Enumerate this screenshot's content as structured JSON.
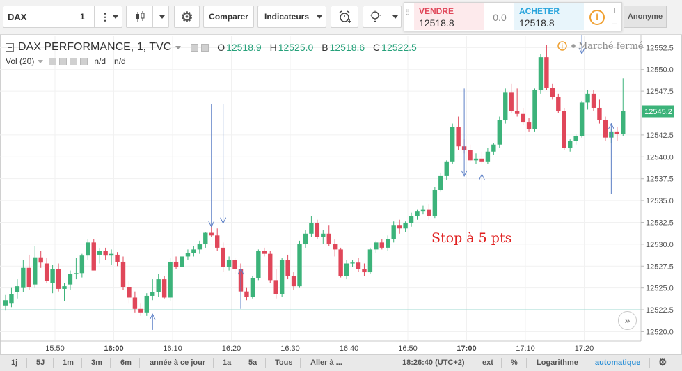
{
  "toolbar": {
    "symbol": "DAX",
    "interval": "1",
    "compare_label": "Comparer",
    "indicators_label": "Indicateurs",
    "user_label": "Anonyme"
  },
  "trade": {
    "sell_label": "VENDRE",
    "sell_value": "12518.8",
    "spread": "0.0",
    "buy_label": "ACHETER",
    "buy_value": "12518.8",
    "info_glyph": "i",
    "plus": "+",
    "minus": "−"
  },
  "legend": {
    "title": "DAX PERFORMANCE, 1, TVC",
    "o_label": "O",
    "o_value": "12518.9",
    "h_label": "H",
    "h_value": "12525.0",
    "b_label": "B",
    "b_value": "12518.6",
    "c_label": "C",
    "c_value": "12522.5",
    "vol_label": "Vol (20)",
    "vol_val1": "n/d",
    "vol_val2": "n/d"
  },
  "market_status": "Marché fermé",
  "annotation": "Stop à 5 pts",
  "bottom_bar": {
    "ranges": [
      "1j",
      "5J",
      "1m",
      "3m",
      "6m",
      "année à ce jour",
      "1a",
      "5a",
      "Tous",
      "Aller à ..."
    ],
    "time": "18:26:40 (UTC+2)",
    "ext": "ext",
    "percent": "%",
    "log": "Logarithme",
    "auto": "automatique"
  },
  "colors": {
    "up": "#3cb37a",
    "down": "#e0475a",
    "accent": "#2196f3",
    "price_tag": "#3cb37a",
    "hline": "#9fd8d2"
  },
  "chart_data": {
    "type": "candlestick",
    "y_ticks": [
      "12520.0",
      "12522.5",
      "12525.0",
      "12527.5",
      "12530.0",
      "12532.5",
      "12535.0",
      "12537.5",
      "12540.0",
      "12542.5",
      "12545.0",
      "12547.5",
      "12550.0",
      "12552.5"
    ],
    "ylim": [
      12519,
      12553.8
    ],
    "x_ticks": [
      {
        "label": "15:50",
        "bold": false
      },
      {
        "label": "16:00",
        "bold": true
      },
      {
        "label": "16:10",
        "bold": false
      },
      {
        "label": "16:20",
        "bold": false
      },
      {
        "label": "16:30",
        "bold": false
      },
      {
        "label": "16:40",
        "bold": false
      },
      {
        "label": "16:50",
        "bold": false
      },
      {
        "label": "17:00",
        "bold": true
      },
      {
        "label": "17:10",
        "bold": false
      },
      {
        "label": "17:20",
        "bold": false
      }
    ],
    "last_price": "12545.2",
    "horizontal_line": 12522.5,
    "candles": [
      {
        "o": 12523.0,
        "h": 12524.2,
        "l": 12522.4,
        "c": 12523.6
      },
      {
        "o": 12523.2,
        "h": 12525.0,
        "l": 12522.8,
        "c": 12524.3
      },
      {
        "o": 12524.5,
        "h": 12526.0,
        "l": 12523.8,
        "c": 12525.2
      },
      {
        "o": 12525.0,
        "h": 12528.2,
        "l": 12524.5,
        "c": 12527.3
      },
      {
        "o": 12527.3,
        "h": 12528.8,
        "l": 12524.8,
        "c": 12525.1
      },
      {
        "o": 12525.4,
        "h": 12529.8,
        "l": 12525.0,
        "c": 12528.5
      },
      {
        "o": 12528.5,
        "h": 12529.2,
        "l": 12527.3,
        "c": 12527.9
      },
      {
        "o": 12527.8,
        "h": 12528.4,
        "l": 12525.6,
        "c": 12525.8
      },
      {
        "o": 12525.6,
        "h": 12527.6,
        "l": 12524.4,
        "c": 12527.2
      },
      {
        "o": 12527.2,
        "h": 12527.8,
        "l": 12524.6,
        "c": 12524.9
      },
      {
        "o": 12524.9,
        "h": 12525.6,
        "l": 12523.5,
        "c": 12525.2
      },
      {
        "o": 12525.4,
        "h": 12527.0,
        "l": 12524.8,
        "c": 12526.6
      },
      {
        "o": 12526.6,
        "h": 12528.4,
        "l": 12526.0,
        "c": 12526.7
      },
      {
        "o": 12526.7,
        "h": 12528.9,
        "l": 12526.2,
        "c": 12528.7
      },
      {
        "o": 12528.7,
        "h": 12530.6,
        "l": 12528.2,
        "c": 12530.2
      },
      {
        "o": 12530.2,
        "h": 12530.6,
        "l": 12527.0,
        "c": 12527.0
      },
      {
        "o": 12528.8,
        "h": 12529.5,
        "l": 12527.8,
        "c": 12529.2
      },
      {
        "o": 12529.2,
        "h": 12529.6,
        "l": 12528.2,
        "c": 12528.7
      },
      {
        "o": 12528.7,
        "h": 12529.4,
        "l": 12527.6,
        "c": 12528.9
      },
      {
        "o": 12528.8,
        "h": 12529.1,
        "l": 12527.5,
        "c": 12528.0
      },
      {
        "o": 12528.0,
        "h": 12528.6,
        "l": 12524.8,
        "c": 12525.1
      },
      {
        "o": 12525.1,
        "h": 12525.8,
        "l": 12523.2,
        "c": 12523.9
      },
      {
        "o": 12523.9,
        "h": 12524.6,
        "l": 12522.2,
        "c": 12522.6
      },
      {
        "o": 12522.6,
        "h": 12523.2,
        "l": 12521.8,
        "c": 12522.2
      },
      {
        "o": 12522.2,
        "h": 12524.4,
        "l": 12521.8,
        "c": 12524.1
      },
      {
        "o": 12524.1,
        "h": 12526.0,
        "l": 12523.6,
        "c": 12524.5
      },
      {
        "o": 12524.5,
        "h": 12526.6,
        "l": 12524.0,
        "c": 12526.0
      },
      {
        "o": 12526.0,
        "h": 12526.4,
        "l": 12523.8,
        "c": 12523.9
      },
      {
        "o": 12523.9,
        "h": 12528.4,
        "l": 12523.5,
        "c": 12528.0
      },
      {
        "o": 12528.0,
        "h": 12528.6,
        "l": 12527.2,
        "c": 12527.4
      },
      {
        "o": 12527.4,
        "h": 12528.8,
        "l": 12527.0,
        "c": 12528.6
      },
      {
        "o": 12528.6,
        "h": 12529.4,
        "l": 12528.2,
        "c": 12529.0
      },
      {
        "o": 12529.0,
        "h": 12529.8,
        "l": 12528.6,
        "c": 12529.4
      },
      {
        "o": 12529.4,
        "h": 12530.4,
        "l": 12528.9,
        "c": 12530.0
      },
      {
        "o": 12530.0,
        "h": 12531.4,
        "l": 12529.6,
        "c": 12531.3
      },
      {
        "o": 12531.3,
        "h": 12532.2,
        "l": 12530.8,
        "c": 12531.0
      },
      {
        "o": 12531.0,
        "h": 12531.8,
        "l": 12529.2,
        "c": 12529.6
      },
      {
        "o": 12529.6,
        "h": 12530.2,
        "l": 12526.8,
        "c": 12527.4
      },
      {
        "o": 12527.4,
        "h": 12528.6,
        "l": 12527.0,
        "c": 12528.2
      },
      {
        "o": 12528.2,
        "h": 12528.4,
        "l": 12526.6,
        "c": 12527.2
      },
      {
        "o": 12527.2,
        "h": 12527.8,
        "l": 12524.2,
        "c": 12524.6
      },
      {
        "o": 12524.6,
        "h": 12525.0,
        "l": 12523.6,
        "c": 12524.0
      },
      {
        "o": 12524.0,
        "h": 12526.4,
        "l": 12523.8,
        "c": 12526.1
      },
      {
        "o": 12526.1,
        "h": 12529.4,
        "l": 12525.9,
        "c": 12529.2
      },
      {
        "o": 12529.2,
        "h": 12529.6,
        "l": 12528.6,
        "c": 12528.9
      },
      {
        "o": 12528.9,
        "h": 12529.2,
        "l": 12525.6,
        "c": 12525.9
      },
      {
        "o": 12525.9,
        "h": 12527.2,
        "l": 12523.8,
        "c": 12524.3
      },
      {
        "o": 12524.3,
        "h": 12528.4,
        "l": 12524.0,
        "c": 12528.2
      },
      {
        "o": 12528.2,
        "h": 12528.8,
        "l": 12526.0,
        "c": 12526.4
      },
      {
        "o": 12526.4,
        "h": 12526.8,
        "l": 12524.8,
        "c": 12525.2
      },
      {
        "o": 12525.2,
        "h": 12530.4,
        "l": 12525.0,
        "c": 12530.0
      },
      {
        "o": 12530.0,
        "h": 12531.6,
        "l": 12529.6,
        "c": 12531.2
      },
      {
        "o": 12531.2,
        "h": 12533.2,
        "l": 12530.8,
        "c": 12532.4
      },
      {
        "o": 12532.4,
        "h": 12532.8,
        "l": 12530.6,
        "c": 12530.8
      },
      {
        "o": 12530.8,
        "h": 12531.6,
        "l": 12530.0,
        "c": 12531.2
      },
      {
        "o": 12531.2,
        "h": 12532.2,
        "l": 12529.8,
        "c": 12530.0
      },
      {
        "o": 12530.0,
        "h": 12530.6,
        "l": 12528.6,
        "c": 12529.4
      },
      {
        "o": 12529.4,
        "h": 12529.6,
        "l": 12526.2,
        "c": 12526.4
      },
      {
        "o": 12526.4,
        "h": 12528.2,
        "l": 12526.0,
        "c": 12527.8
      },
      {
        "o": 12527.8,
        "h": 12528.2,
        "l": 12527.4,
        "c": 12527.9
      },
      {
        "o": 12527.9,
        "h": 12528.4,
        "l": 12526.8,
        "c": 12527.2
      },
      {
        "o": 12527.2,
        "h": 12527.8,
        "l": 12526.4,
        "c": 12526.8
      },
      {
        "o": 12526.8,
        "h": 12529.6,
        "l": 12526.6,
        "c": 12529.4
      },
      {
        "o": 12529.4,
        "h": 12530.4,
        "l": 12529.0,
        "c": 12530.2
      },
      {
        "o": 12530.2,
        "h": 12530.6,
        "l": 12529.4,
        "c": 12529.6
      },
      {
        "o": 12529.6,
        "h": 12531.0,
        "l": 12529.2,
        "c": 12530.6
      },
      {
        "o": 12530.6,
        "h": 12532.6,
        "l": 12530.2,
        "c": 12532.2
      },
      {
        "o": 12532.2,
        "h": 12532.8,
        "l": 12531.2,
        "c": 12531.8
      },
      {
        "o": 12531.8,
        "h": 12532.6,
        "l": 12531.4,
        "c": 12532.4
      },
      {
        "o": 12532.4,
        "h": 12533.6,
        "l": 12532.0,
        "c": 12533.2
      },
      {
        "o": 12533.2,
        "h": 12534.0,
        "l": 12532.8,
        "c": 12533.8
      },
      {
        "o": 12533.8,
        "h": 12534.4,
        "l": 12533.4,
        "c": 12534.0
      },
      {
        "o": 12534.0,
        "h": 12534.6,
        "l": 12532.8,
        "c": 12533.2
      },
      {
        "o": 12533.2,
        "h": 12536.6,
        "l": 12533.0,
        "c": 12536.2
      },
      {
        "o": 12536.2,
        "h": 12538.2,
        "l": 12536.0,
        "c": 12537.8
      },
      {
        "o": 12537.8,
        "h": 12539.6,
        "l": 12537.4,
        "c": 12539.4
      },
      {
        "o": 12539.4,
        "h": 12543.8,
        "l": 12539.2,
        "c": 12543.4
      },
      {
        "o": 12543.4,
        "h": 12544.6,
        "l": 12540.8,
        "c": 12541.2
      },
      {
        "o": 12541.2,
        "h": 12542.0,
        "l": 12540.4,
        "c": 12540.8
      },
      {
        "o": 12540.8,
        "h": 12541.4,
        "l": 12539.4,
        "c": 12539.6
      },
      {
        "o": 12539.6,
        "h": 12540.4,
        "l": 12539.2,
        "c": 12539.8
      },
      {
        "o": 12539.8,
        "h": 12540.6,
        "l": 12539.2,
        "c": 12539.4
      },
      {
        "o": 12539.4,
        "h": 12541.0,
        "l": 12539.2,
        "c": 12540.6
      },
      {
        "o": 12540.6,
        "h": 12541.6,
        "l": 12540.2,
        "c": 12541.4
      },
      {
        "o": 12541.4,
        "h": 12544.6,
        "l": 12541.0,
        "c": 12544.2
      },
      {
        "o": 12544.2,
        "h": 12547.8,
        "l": 12543.8,
        "c": 12547.4
      },
      {
        "o": 12547.4,
        "h": 12548.4,
        "l": 12545.0,
        "c": 12545.2
      },
      {
        "o": 12545.2,
        "h": 12547.8,
        "l": 12544.6,
        "c": 12544.9
      },
      {
        "o": 12544.9,
        "h": 12545.6,
        "l": 12543.6,
        "c": 12544.0
      },
      {
        "o": 12544.0,
        "h": 12544.4,
        "l": 12542.9,
        "c": 12543.2
      },
      {
        "o": 12543.2,
        "h": 12547.8,
        "l": 12542.9,
        "c": 12547.6
      },
      {
        "o": 12547.6,
        "h": 12551.8,
        "l": 12547.2,
        "c": 12551.4
      },
      {
        "o": 12551.4,
        "h": 12552.8,
        "l": 12547.6,
        "c": 12547.9
      },
      {
        "o": 12547.9,
        "h": 12548.4,
        "l": 12546.6,
        "c": 12546.8
      },
      {
        "o": 12546.8,
        "h": 12547.2,
        "l": 12545.0,
        "c": 12545.2
      },
      {
        "o": 12545.2,
        "h": 12545.6,
        "l": 12540.8,
        "c": 12541.0
      },
      {
        "o": 12541.0,
        "h": 12542.0,
        "l": 12540.6,
        "c": 12541.8
      },
      {
        "o": 12541.8,
        "h": 12542.6,
        "l": 12541.4,
        "c": 12542.4
      },
      {
        "o": 12542.4,
        "h": 12546.4,
        "l": 12542.2,
        "c": 12546.2
      },
      {
        "o": 12546.2,
        "h": 12547.6,
        "l": 12545.4,
        "c": 12547.2
      },
      {
        "o": 12547.2,
        "h": 12547.6,
        "l": 12545.2,
        "c": 12545.6
      },
      {
        "o": 12545.6,
        "h": 12546.6,
        "l": 12543.8,
        "c": 12544.2
      },
      {
        "o": 12544.2,
        "h": 12544.6,
        "l": 12541.8,
        "c": 12542.2
      },
      {
        "o": 12542.2,
        "h": 12543.2,
        "l": 12541.6,
        "c": 12542.9
      },
      {
        "o": 12542.9,
        "h": 12543.4,
        "l": 12541.8,
        "c": 12542.6
      },
      {
        "o": 12542.6,
        "h": 12549.0,
        "l": 12542.4,
        "c": 12545.2
      }
    ],
    "arrows": [
      {
        "kind": "up",
        "candle": 25,
        "y_tip": 12522.0,
        "y_tail": 12520.2
      },
      {
        "kind": "down",
        "candle": 35,
        "y_tip": 12532.0,
        "y_tail": 12546.0
      },
      {
        "kind": "down",
        "candle": 37,
        "y_tip": 12532.4,
        "y_tail": 12546.0
      },
      {
        "kind": "up",
        "candle": 40,
        "y_tip": 12527.2,
        "y_tail": 12522.6
      },
      {
        "kind": "down",
        "candle": 78,
        "y_tip": 12537.8,
        "y_tail": 12547.8
      },
      {
        "kind": "up",
        "candle": 81,
        "y_tip": 12538.0,
        "y_tail": 12530.8
      },
      {
        "kind": "down",
        "candle": 98,
        "y_tip": 12551.8,
        "y_tail": 12554.0
      },
      {
        "kind": "up",
        "candle": 103,
        "y_tip": 12543.8,
        "y_tail": 12535.8
      }
    ]
  }
}
